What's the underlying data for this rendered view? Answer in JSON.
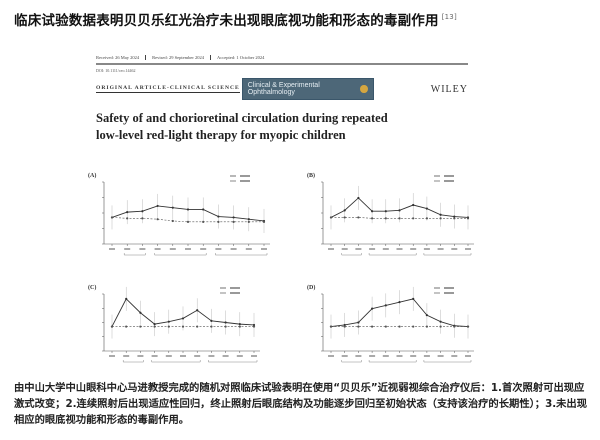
{
  "title": "临床试验数据表明贝贝乐红光治疗未出现眼底视功能和形态的毒副作用",
  "title_ref": "[13]",
  "paper": {
    "dates": [
      "Received: 26 May 2024",
      "Revised: 29 September 2024",
      "Accepted: 1 October 2024"
    ],
    "doi": "DOI: 10.1111/ceo.14462",
    "section": "ORIGINAL ARTICLE-CLINICAL SCIENCE",
    "journal": "Clinical & Experimental Ophthalmology",
    "publisher": "WILEY",
    "title_line1": "Safety of and chorioretinal circulation during repeated",
    "title_line2": "low-level red-light therapy for myopic children"
  },
  "chart_data": [
    {
      "type": "line",
      "panel": "(A)",
      "x_count": 11,
      "series": [
        {
          "values": [
            50,
            56,
            57,
            63,
            61,
            59,
            59,
            51,
            50,
            48,
            46
          ],
          "style": "solid"
        },
        {
          "values": [
            50,
            49,
            49,
            48,
            46,
            45,
            45,
            45,
            45,
            45,
            45
          ],
          "style": "dashed"
        }
      ],
      "colors": [
        "#333333",
        "#555555"
      ]
    },
    {
      "type": "line",
      "panel": "(B)",
      "x_count": 11,
      "series": [
        {
          "values": [
            50,
            58,
            72,
            57,
            57,
            58,
            64,
            60,
            53,
            51,
            50
          ],
          "style": "solid"
        },
        {
          "values": [
            50,
            50,
            50,
            49,
            49,
            49,
            49,
            49,
            49,
            49,
            49
          ],
          "style": "dashed"
        }
      ],
      "colors": [
        "#333333",
        "#555555"
      ]
    },
    {
      "type": "line",
      "panel": "(C)",
      "x_count": 11,
      "series": [
        {
          "values": [
            50,
            84,
            67,
            53,
            56,
            60,
            70,
            57,
            55,
            53,
            52
          ],
          "style": "solid"
        },
        {
          "values": [
            50,
            50,
            50,
            50,
            50,
            50,
            50,
            50,
            50,
            50,
            50
          ],
          "style": "dashed"
        }
      ],
      "colors": [
        "#333333",
        "#555555"
      ]
    },
    {
      "type": "line",
      "panel": "(D)",
      "x_count": 11,
      "series": [
        {
          "values": [
            50,
            52,
            55,
            72,
            76,
            80,
            84,
            64,
            56,
            51,
            50
          ],
          "style": "solid"
        },
        {
          "values": [
            50,
            50,
            50,
            50,
            50,
            50,
            50,
            50,
            50,
            50,
            50
          ],
          "style": "dashed"
        }
      ],
      "colors": [
        "#333333",
        "#555555"
      ]
    }
  ],
  "caption": "由中山大学中山眼科中心马进教授完成的随机对照临床试验表明在使用“贝贝乐”近视弱视综合治疗仪后：1.首次照射可出现应激式改变；2.连续照射后出现适应性回归，终止照射后眼底结构及功能逐步回归至初始状态（支持该治疗的长期性）；3.未出现相应的眼底视功能和形态的毒副作用。"
}
